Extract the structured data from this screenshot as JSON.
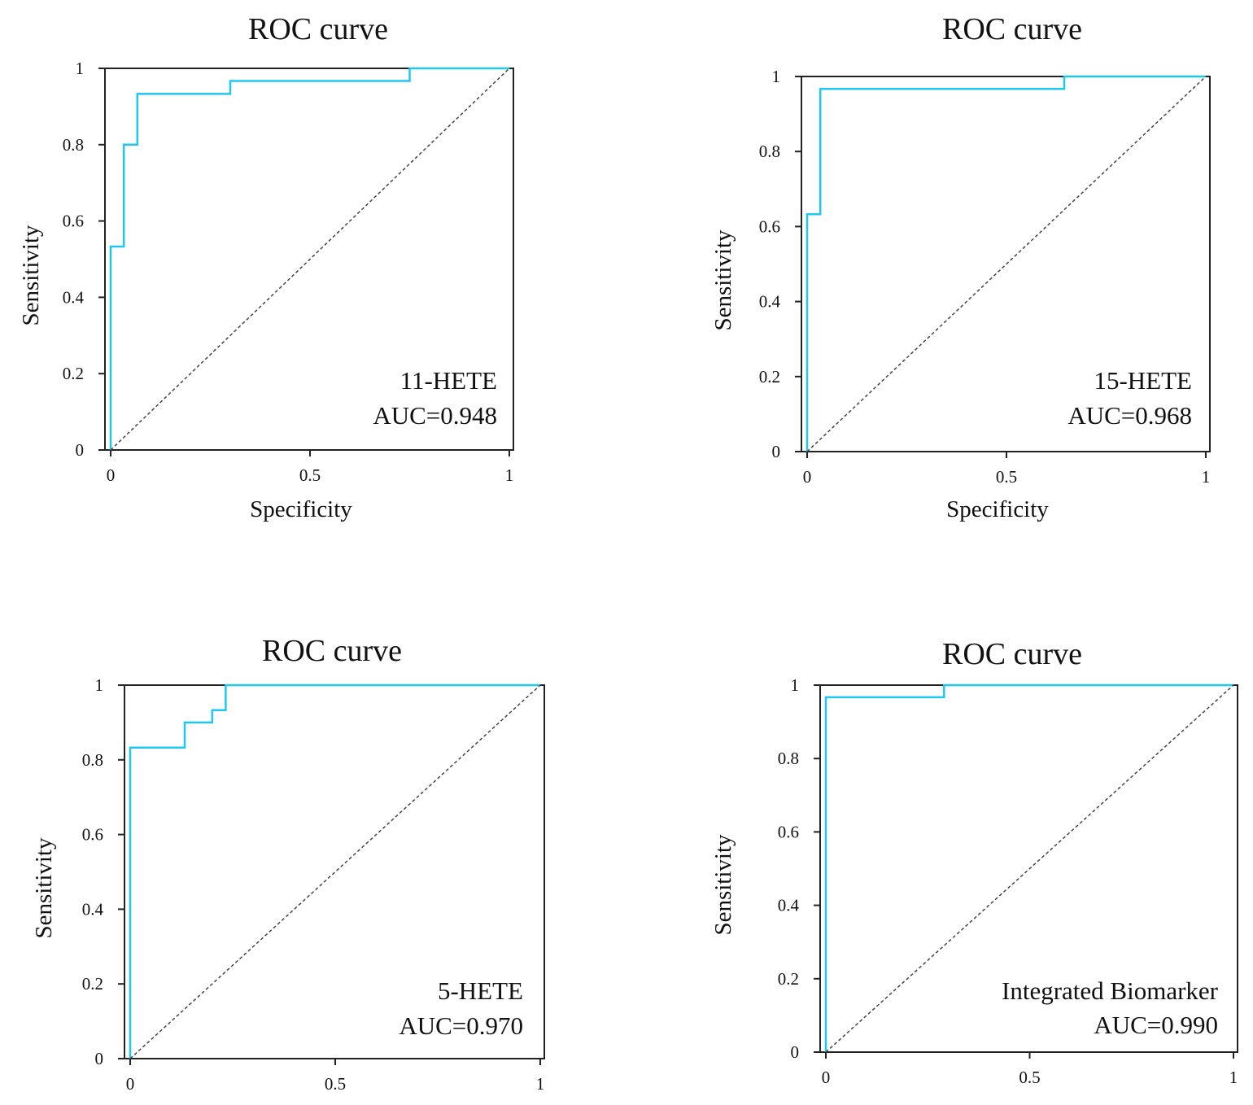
{
  "figure": {
    "curve_color": "#1ec8f0",
    "reference_color": "#444444",
    "frame_color": "#222222"
  },
  "chart_data": [
    {
      "type": "line",
      "title": "ROC curve",
      "xlabel": "Specificity",
      "ylabel": "Sensitivity",
      "xlim": [
        0,
        1
      ],
      "ylim": [
        0,
        1
      ],
      "x_ticks": [
        "0",
        "0.5",
        "1"
      ],
      "y_ticks": [
        "0",
        "0.2",
        "0.4",
        "0.6",
        "0.8",
        "1"
      ],
      "grid": false,
      "annotation": {
        "name": "11-HETE",
        "auc_text": "AUC=0.948"
      },
      "series": [
        {
          "name": "11-HETE",
          "x": [
            0,
            0,
            0.033,
            0.033,
            0.067,
            0.067,
            0.3,
            0.3,
            0.75,
            0.75,
            1
          ],
          "y": [
            0,
            0.533,
            0.533,
            0.8,
            0.8,
            0.933,
            0.933,
            0.967,
            0.967,
            1,
            1
          ]
        },
        {
          "name": "reference",
          "style": "dashed",
          "x": [
            0,
            1
          ],
          "y": [
            0,
            1
          ]
        }
      ]
    },
    {
      "type": "line",
      "title": "ROC curve",
      "xlabel": "Specificity",
      "ylabel": "Sensitivity",
      "xlim": [
        0,
        1
      ],
      "ylim": [
        0,
        1
      ],
      "x_ticks": [
        "0",
        "0.5",
        "1"
      ],
      "y_ticks": [
        "0",
        "0.2",
        "0.4",
        "0.6",
        "0.8",
        "1"
      ],
      "grid": false,
      "annotation": {
        "name": "15-HETE",
        "auc_text": "AUC=0.968"
      },
      "series": [
        {
          "name": "15-HETE",
          "x": [
            0,
            0,
            0.033,
            0.033,
            0.645,
            0.645,
            1
          ],
          "y": [
            0,
            0.633,
            0.633,
            0.967,
            0.967,
            1,
            1
          ]
        },
        {
          "name": "reference",
          "style": "dashed",
          "x": [
            0,
            1
          ],
          "y": [
            0,
            1
          ]
        }
      ]
    },
    {
      "type": "line",
      "title": "ROC curve",
      "xlabel": "",
      "ylabel": "Sensitivity",
      "xlim": [
        0,
        1
      ],
      "ylim": [
        0,
        1
      ],
      "x_ticks": [
        "0",
        "0.5",
        "1"
      ],
      "y_ticks": [
        "0",
        "0.2",
        "0.4",
        "0.6",
        "0.8",
        "1"
      ],
      "grid": false,
      "annotation": {
        "name": "5-HETE",
        "auc_text": "AUC=0.970"
      },
      "series": [
        {
          "name": "5-HETE",
          "x": [
            0,
            0,
            0.133,
            0.133,
            0.2,
            0.2,
            0.233,
            0.233,
            1
          ],
          "y": [
            0,
            0.833,
            0.833,
            0.9,
            0.9,
            0.933,
            0.933,
            1,
            1
          ]
        },
        {
          "name": "reference",
          "style": "dashed",
          "x": [
            0,
            1
          ],
          "y": [
            0,
            1
          ]
        }
      ]
    },
    {
      "type": "line",
      "title": "ROC curve",
      "xlabel": "",
      "ylabel": "Sensitivity",
      "xlim": [
        0,
        1
      ],
      "ylim": [
        0,
        1
      ],
      "x_ticks": [
        "0",
        "0.5",
        "1"
      ],
      "y_ticks": [
        "0",
        "0.2",
        "0.4",
        "0.6",
        "0.8",
        "1"
      ],
      "grid": false,
      "annotation": {
        "name": "Integrated Biomarker",
        "auc_text": "AUC=0.990"
      },
      "series": [
        {
          "name": "Integrated Biomarker",
          "x": [
            0,
            0,
            0.29,
            0.29,
            1
          ],
          "y": [
            0,
            0.967,
            0.967,
            1,
            1
          ]
        },
        {
          "name": "reference",
          "style": "dashed",
          "x": [
            0,
            1
          ],
          "y": [
            0,
            1
          ]
        }
      ]
    }
  ]
}
